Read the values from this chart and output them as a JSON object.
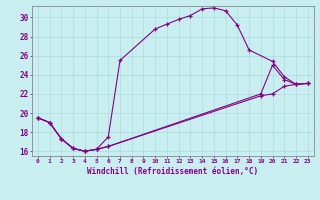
{
  "xlabel": "Windchill (Refroidissement éolien,°C)",
  "bg_color": "#c8eef0",
  "grid_color": "#aadddd",
  "line_color": "#880088",
  "xlim": [
    -0.5,
    23.5
  ],
  "ylim": [
    15.5,
    31.2
  ],
  "xticks": [
    0,
    1,
    2,
    3,
    4,
    5,
    6,
    7,
    8,
    9,
    10,
    11,
    12,
    13,
    14,
    15,
    16,
    17,
    18,
    19,
    20,
    21,
    22,
    23
  ],
  "yticks": [
    16,
    18,
    20,
    22,
    24,
    26,
    28,
    30
  ],
  "series1_x": [
    0,
    1,
    2,
    3,
    4,
    5,
    6,
    7,
    10,
    11,
    12,
    13,
    14,
    15,
    16,
    17,
    18,
    20,
    21,
    22,
    23
  ],
  "series1_y": [
    19.5,
    19.0,
    17.3,
    16.3,
    16.0,
    16.2,
    17.5,
    25.5,
    28.8,
    29.3,
    29.8,
    30.2,
    30.9,
    31.0,
    30.7,
    29.2,
    26.6,
    25.4,
    23.8,
    23.0,
    23.1
  ],
  "series2_x": [
    0,
    1,
    2,
    3,
    4,
    5,
    6,
    19,
    20,
    21,
    22,
    23
  ],
  "series2_y": [
    19.5,
    19.0,
    17.3,
    16.3,
    16.0,
    16.2,
    16.5,
    22.0,
    25.0,
    23.5,
    23.0,
    23.1
  ],
  "series3_x": [
    0,
    1,
    2,
    3,
    4,
    5,
    6,
    19,
    20,
    21,
    22,
    23
  ],
  "series3_y": [
    19.5,
    19.0,
    17.3,
    16.3,
    16.0,
    16.2,
    16.5,
    21.8,
    22.0,
    22.8,
    23.0,
    23.1
  ]
}
